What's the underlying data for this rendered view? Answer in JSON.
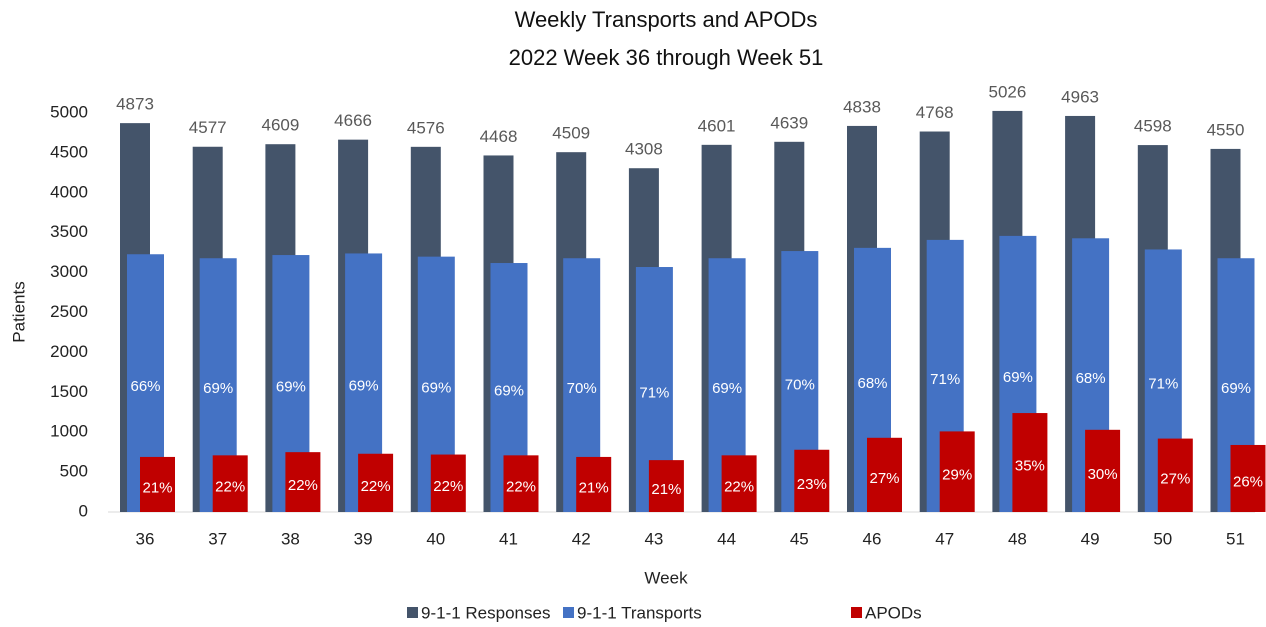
{
  "chart_data": {
    "type": "bar",
    "title": "Weekly Transports and APODs",
    "subtitle": "2022 Week 36 through Week 51",
    "x_label": "Week",
    "y_label": "Patients",
    "categories": [
      "36",
      "37",
      "38",
      "39",
      "40",
      "41",
      "42",
      "43",
      "44",
      "45",
      "46",
      "47",
      "48",
      "49",
      "50",
      "51"
    ],
    "ylim": [
      0,
      5000
    ],
    "yticks": [
      0,
      500,
      1000,
      1500,
      2000,
      2500,
      3000,
      3500,
      4000,
      4500,
      5000
    ],
    "legend": "bottom",
    "series": [
      {
        "name": "9-1-1 Responses",
        "color": "#44546a",
        "values": [
          4873,
          4577,
          4609,
          4666,
          4576,
          4468,
          4509,
          4308,
          4601,
          4639,
          4838,
          4768,
          5026,
          4963,
          4598,
          4550
        ]
      },
      {
        "name": "9-1-1 Transports",
        "color": "#4472c4",
        "values": [
          3230,
          3180,
          3220,
          3240,
          3200,
          3120,
          3180,
          3070,
          3180,
          3270,
          3310,
          3410,
          3460,
          3430,
          3290,
          3180
        ],
        "data_labels": [
          "66%",
          "69%",
          "69%",
          "69%",
          "69%",
          "69%",
          "70%",
          "71%",
          "69%",
          "70%",
          "68%",
          "71%",
          "69%",
          "68%",
          "71%",
          "69%"
        ]
      },
      {
        "name": "APODs",
        "color": "#c00000",
        "values": [
          690,
          710,
          750,
          730,
          720,
          710,
          690,
          650,
          710,
          780,
          930,
          1010,
          1240,
          1030,
          920,
          840
        ],
        "data_labels": [
          "21%",
          "22%",
          "22%",
          "22%",
          "22%",
          "22%",
          "21%",
          "21%",
          "22%",
          "23%",
          "27%",
          "29%",
          "35%",
          "30%",
          "27%",
          "26%"
        ]
      }
    ]
  }
}
